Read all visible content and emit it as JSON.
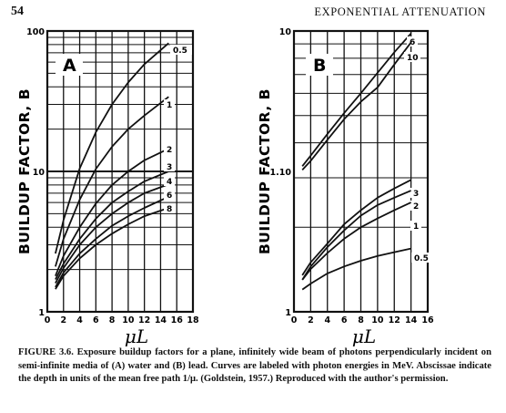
{
  "header": {
    "page_number": "54",
    "running_head": "EXPONENTIAL ATTENUATION"
  },
  "caption": "FIGURE 3.6.   Exposure buildup factors for a plane, infinitely wide beam of photons perpendicularly incident on semi-infinite media of (A) water and (B) lead. Curves are labeled with photon energies in MeV. Abscissae indicate the depth in units of the mean free path 1/μ. (Goldstein, 1957.) Reproduced with the author's permission.",
  "chart_data": [
    {
      "type": "line",
      "panel": "A",
      "ylabel": "BUILDUP FACTOR, B",
      "xlabel": "μL",
      "yscale": "log",
      "ylim": [
        1,
        100
      ],
      "xlim": [
        0,
        18
      ],
      "xticks": [
        "0",
        "2",
        "4",
        "6",
        "8",
        "10",
        "12",
        "14",
        "16",
        "18"
      ],
      "yticks": [
        "1",
        "10",
        "100"
      ],
      "grid": true,
      "series": [
        {
          "name": "0.5",
          "x": [
            1,
            2,
            4,
            6,
            8,
            10,
            12,
            15
          ],
          "values": [
            2.6,
            4.5,
            10.5,
            19,
            30,
            43,
            58,
            82
          ]
        },
        {
          "name": "1",
          "x": [
            1,
            2,
            4,
            6,
            8,
            10,
            12,
            15
          ],
          "values": [
            2.1,
            3.3,
            6.3,
            10.4,
            15,
            20,
            25,
            34
          ]
        },
        {
          "name": "2",
          "x": [
            1,
            2,
            4,
            6,
            8,
            10,
            12,
            15
          ],
          "values": [
            1.8,
            2.5,
            4,
            5.9,
            8,
            10,
            12,
            14.5
          ]
        },
        {
          "name": "3",
          "x": [
            1,
            2,
            4,
            6,
            8,
            10,
            12,
            15
          ],
          "values": [
            1.7,
            2.2,
            3.3,
            4.6,
            6,
            7.2,
            8.5,
            10
          ]
        },
        {
          "name": "4",
          "x": [
            1,
            2,
            4,
            6,
            8,
            10,
            12,
            15
          ],
          "values": [
            1.6,
            2.05,
            3,
            4,
            5,
            6,
            7,
            8.1
          ]
        },
        {
          "name": "6",
          "x": [
            1,
            2,
            4,
            6,
            8,
            10,
            12,
            15
          ],
          "values": [
            1.5,
            1.9,
            2.6,
            3.3,
            4.1,
            4.8,
            5.5,
            6.6
          ]
        },
        {
          "name": "8",
          "x": [
            1,
            2,
            4,
            6,
            8,
            10,
            12,
            15
          ],
          "values": [
            1.45,
            1.8,
            2.4,
            3,
            3.6,
            4.2,
            4.8,
            5.5
          ]
        }
      ]
    },
    {
      "type": "line",
      "panel": "B",
      "ylabel": "BUILDUP FACTOR, B",
      "xlabel": "μL",
      "yscale": "log",
      "ylim": [
        1,
        10
      ],
      "xlim": [
        0,
        16
      ],
      "xticks": [
        "0",
        "2",
        "4",
        "6",
        "8",
        "10",
        "12",
        "14",
        "16"
      ],
      "yticks": [
        "1",
        "1.10",
        "10"
      ],
      "grid": true,
      "series": [
        {
          "name": "6",
          "x": [
            1,
            2,
            4,
            6,
            8,
            10,
            12,
            14
          ],
          "values": [
            3.3,
            3.6,
            4.3,
            5.1,
            6,
            7.1,
            8.4,
            9.8
          ]
        },
        {
          "name": "10",
          "x": [
            1,
            2,
            4,
            6,
            8,
            10,
            12,
            14
          ],
          "values": [
            3.2,
            3.45,
            4.1,
            4.85,
            5.6,
            6.3,
            7.6,
            9.1
          ]
        },
        {
          "name": "3",
          "x": [
            1,
            2,
            4,
            6,
            8,
            10,
            12,
            14
          ],
          "values": [
            1.35,
            1.5,
            1.75,
            2.05,
            2.3,
            2.55,
            2.75,
            2.95
          ]
        },
        {
          "name": "2",
          "x": [
            1,
            2,
            4,
            6,
            8,
            10,
            12,
            14
          ],
          "values": [
            1.3,
            1.45,
            1.7,
            1.95,
            2.2,
            2.4,
            2.55,
            2.7
          ]
        },
        {
          "name": "1",
          "x": [
            1,
            2,
            4,
            6,
            8,
            10,
            12,
            14
          ],
          "values": [
            1.3,
            1.42,
            1.62,
            1.82,
            2,
            2.15,
            2.3,
            2.45
          ]
        },
        {
          "name": "0.5",
          "x": [
            1,
            2,
            4,
            6,
            8,
            10,
            12,
            14
          ],
          "values": [
            1.2,
            1.26,
            1.37,
            1.45,
            1.52,
            1.58,
            1.63,
            1.68
          ]
        }
      ]
    }
  ]
}
